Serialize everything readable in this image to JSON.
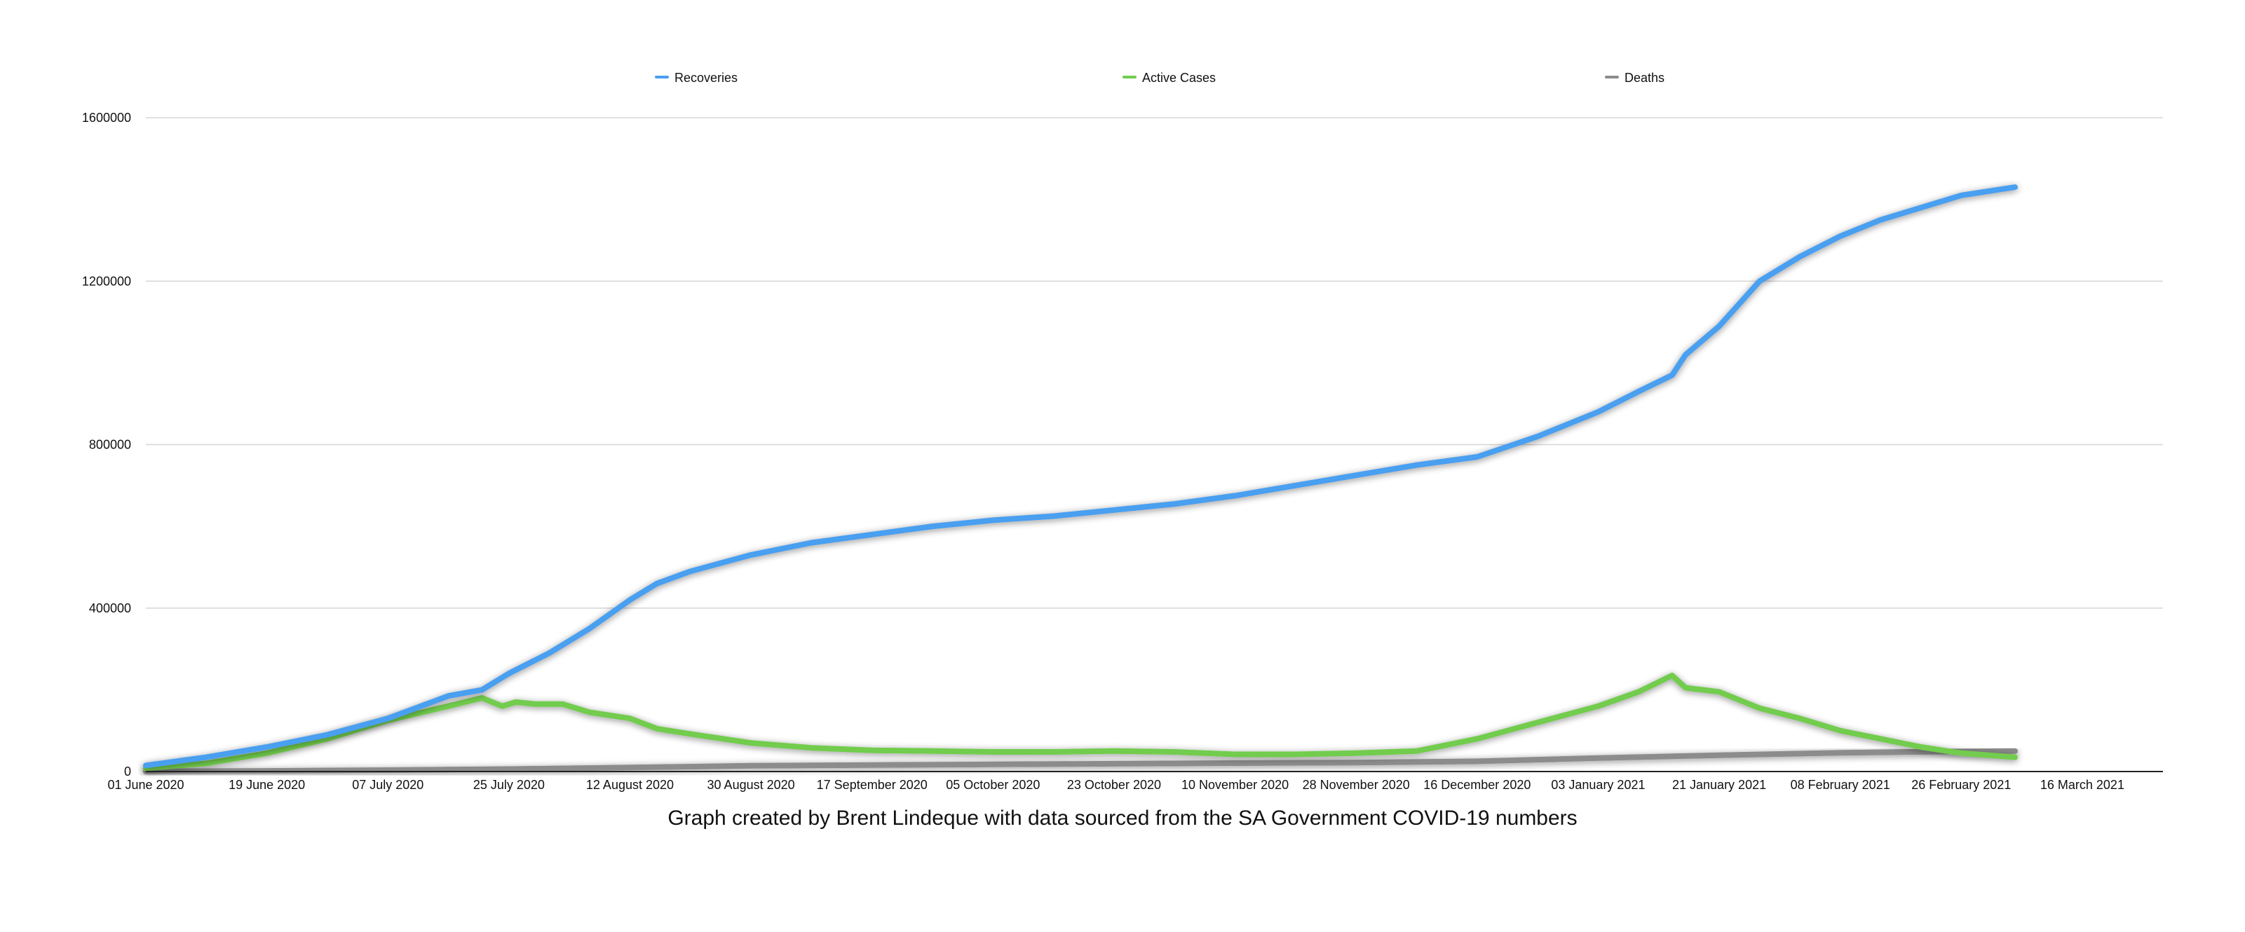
{
  "chart_data": {
    "type": "line",
    "caption": "Graph created by Brent Lindeque with data sourced from the SA Government COVID-19 numbers",
    "y_ticks": [
      0,
      400000,
      800000,
      1200000,
      1600000
    ],
    "ylim": [
      0,
      1600000
    ],
    "grid": "horizontal",
    "legend_position": "top",
    "x_ticks": [
      {
        "label": "01 June 2020",
        "day": 0
      },
      {
        "label": "19 June 2020",
        "day": 18
      },
      {
        "label": "07 July 2020",
        "day": 36
      },
      {
        "label": "25 July 2020",
        "day": 54
      },
      {
        "label": "12 August 2020",
        "day": 72
      },
      {
        "label": "30 August 2020",
        "day": 90
      },
      {
        "label": "17 September 2020",
        "day": 108
      },
      {
        "label": "05 October 2020",
        "day": 126
      },
      {
        "label": "23 October 2020",
        "day": 144
      },
      {
        "label": "10 November 2020",
        "day": 162
      },
      {
        "label": "28 November 2020",
        "day": 180
      },
      {
        "label": "16 December 2020",
        "day": 198
      },
      {
        "label": "03 January 2021",
        "day": 216
      },
      {
        "label": "21 January 2021",
        "day": 234
      },
      {
        "label": "08 February 2021",
        "day": 252
      },
      {
        "label": "26 February 2021",
        "day": 270
      },
      {
        "label": "16 March 2021",
        "day": 288
      }
    ],
    "x_range_days": [
      0,
      300
    ],
    "series": [
      {
        "name": "Recoveries",
        "color": "#4a9ff0",
        "points": [
          [
            0,
            15000
          ],
          [
            9,
            35000
          ],
          [
            18,
            60000
          ],
          [
            27,
            90000
          ],
          [
            36,
            130000
          ],
          [
            45,
            185000
          ],
          [
            50,
            200000
          ],
          [
            54,
            240000
          ],
          [
            60,
            290000
          ],
          [
            66,
            350000
          ],
          [
            72,
            420000
          ],
          [
            76,
            460000
          ],
          [
            81,
            490000
          ],
          [
            90,
            530000
          ],
          [
            99,
            560000
          ],
          [
            108,
            580000
          ],
          [
            117,
            600000
          ],
          [
            126,
            615000
          ],
          [
            135,
            625000
          ],
          [
            144,
            640000
          ],
          [
            153,
            655000
          ],
          [
            162,
            675000
          ],
          [
            171,
            700000
          ],
          [
            180,
            725000
          ],
          [
            189,
            750000
          ],
          [
            198,
            770000
          ],
          [
            207,
            820000
          ],
          [
            216,
            880000
          ],
          [
            222,
            930000
          ],
          [
            227,
            970000
          ],
          [
            229,
            1020000
          ],
          [
            234,
            1090000
          ],
          [
            240,
            1200000
          ],
          [
            246,
            1260000
          ],
          [
            252,
            1310000
          ],
          [
            258,
            1350000
          ],
          [
            264,
            1380000
          ],
          [
            270,
            1410000
          ],
          [
            278,
            1430000
          ]
        ]
      },
      {
        "name": "Active Cases",
        "color": "#72cc4e",
        "points": [
          [
            0,
            8000
          ],
          [
            9,
            20000
          ],
          [
            18,
            45000
          ],
          [
            27,
            80000
          ],
          [
            36,
            125000
          ],
          [
            45,
            160000
          ],
          [
            50,
            180000
          ],
          [
            53,
            160000
          ],
          [
            55,
            170000
          ],
          [
            58,
            165000
          ],
          [
            62,
            165000
          ],
          [
            66,
            145000
          ],
          [
            72,
            130000
          ],
          [
            76,
            105000
          ],
          [
            81,
            92000
          ],
          [
            90,
            70000
          ],
          [
            99,
            58000
          ],
          [
            108,
            52000
          ],
          [
            117,
            50000
          ],
          [
            126,
            48000
          ],
          [
            135,
            48000
          ],
          [
            144,
            50000
          ],
          [
            153,
            48000
          ],
          [
            162,
            42000
          ],
          [
            171,
            42000
          ],
          [
            180,
            45000
          ],
          [
            189,
            50000
          ],
          [
            198,
            80000
          ],
          [
            207,
            120000
          ],
          [
            216,
            160000
          ],
          [
            222,
            195000
          ],
          [
            227,
            235000
          ],
          [
            229,
            205000
          ],
          [
            234,
            195000
          ],
          [
            240,
            155000
          ],
          [
            246,
            130000
          ],
          [
            252,
            100000
          ],
          [
            258,
            80000
          ],
          [
            264,
            60000
          ],
          [
            270,
            45000
          ],
          [
            278,
            35000
          ]
        ]
      },
      {
        "name": "Deaths",
        "color": "#8c8c8c",
        "points": [
          [
            0,
            500
          ],
          [
            18,
            1500
          ],
          [
            36,
            3500
          ],
          [
            54,
            6000
          ],
          [
            72,
            10000
          ],
          [
            90,
            14000
          ],
          [
            108,
            16000
          ],
          [
            126,
            17500
          ],
          [
            144,
            19000
          ],
          [
            162,
            20500
          ],
          [
            180,
            22000
          ],
          [
            198,
            25000
          ],
          [
            216,
            33000
          ],
          [
            234,
            40000
          ],
          [
            252,
            46000
          ],
          [
            270,
            49000
          ],
          [
            278,
            50000
          ]
        ]
      }
    ]
  }
}
